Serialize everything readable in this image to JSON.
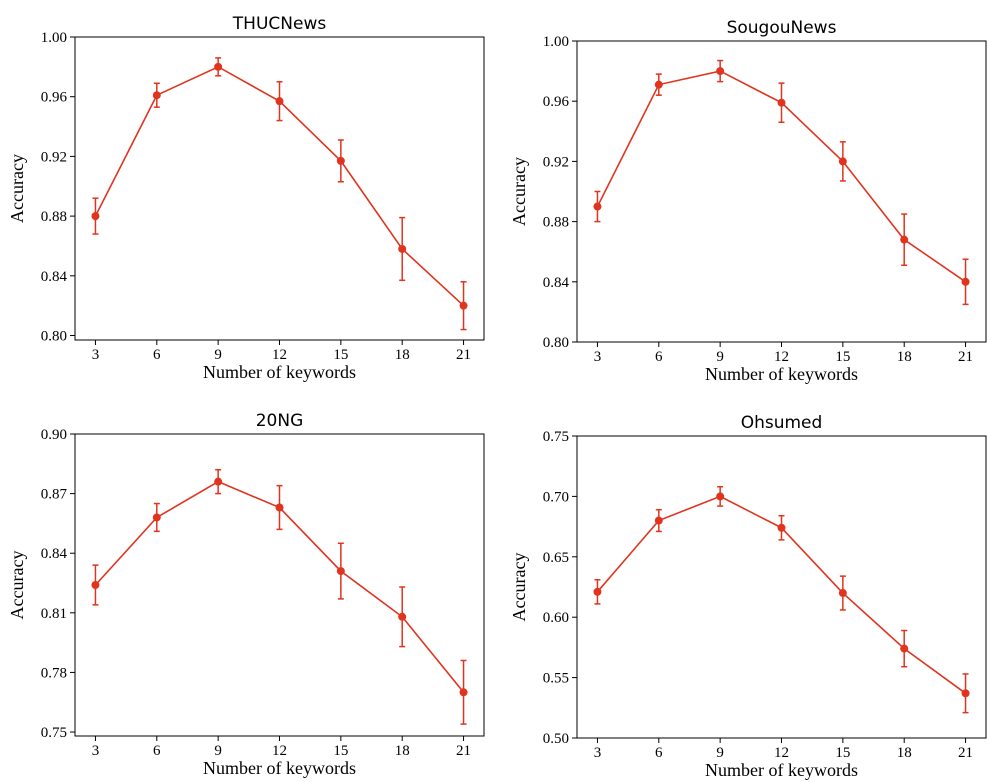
{
  "chart_data": [
    {
      "type": "line",
      "title": "THUCNews",
      "xlabel": "Number of keywords",
      "ylabel": "Accuracy",
      "x": [
        3,
        6,
        9,
        12,
        15,
        18,
        21
      ],
      "xticks": [
        "3",
        "6",
        "9",
        "12",
        "15",
        "18",
        "21"
      ],
      "yticks": [
        "0.80",
        "0.84",
        "0.88",
        "0.92",
        "0.96",
        "1.00"
      ],
      "ylim": [
        0.797,
        1.0
      ],
      "xlim": [
        2.0,
        22.0
      ],
      "grid": false,
      "series": [
        {
          "values": [
            0.88,
            0.961,
            0.98,
            0.957,
            0.917,
            0.858,
            0.82
          ],
          "error": [
            0.012,
            0.008,
            0.006,
            0.013,
            0.014,
            0.021,
            0.016
          ],
          "color": "#e0341f"
        }
      ]
    },
    {
      "type": "line",
      "title": "SougouNews",
      "xlabel": "Number of keywords",
      "ylabel": "Accuracy",
      "x": [
        3,
        6,
        9,
        12,
        15,
        18,
        21
      ],
      "xticks": [
        "3",
        "6",
        "9",
        "12",
        "15",
        "18",
        "21"
      ],
      "yticks": [
        "0.80",
        "0.84",
        "0.88",
        "0.92",
        "0.96",
        "1.00"
      ],
      "ylim": [
        0.8,
        1.0
      ],
      "xlim": [
        2.0,
        22.0
      ],
      "grid": false,
      "series": [
        {
          "values": [
            0.89,
            0.971,
            0.98,
            0.959,
            0.92,
            0.868,
            0.84
          ],
          "error": [
            0.01,
            0.007,
            0.007,
            0.013,
            0.013,
            0.017,
            0.015
          ],
          "color": "#e0341f"
        }
      ]
    },
    {
      "type": "line",
      "title": "20NG",
      "xlabel": "Number of keywords",
      "ylabel": "Accuracy",
      "x": [
        3,
        6,
        9,
        12,
        15,
        18,
        21
      ],
      "xticks": [
        "3",
        "6",
        "9",
        "12",
        "15",
        "18",
        "21"
      ],
      "yticks": [
        "0.75",
        "0.78",
        "0.81",
        "0.84",
        "0.87",
        "0.90"
      ],
      "ylim": [
        0.748,
        0.9
      ],
      "xlim": [
        2.0,
        22.0
      ],
      "grid": false,
      "series": [
        {
          "values": [
            0.824,
            0.858,
            0.876,
            0.863,
            0.831,
            0.808,
            0.77
          ],
          "error": [
            0.01,
            0.007,
            0.006,
            0.011,
            0.014,
            0.015,
            0.016
          ],
          "color": "#e0341f"
        }
      ]
    },
    {
      "type": "line",
      "title": "Ohsumed",
      "xlabel": "Number of keywords",
      "ylabel": "Accuracy",
      "x": [
        3,
        6,
        9,
        12,
        15,
        18,
        21
      ],
      "xticks": [
        "3",
        "6",
        "9",
        "12",
        "15",
        "18",
        "21"
      ],
      "yticks": [
        "0.50",
        "0.55",
        "0.60",
        "0.65",
        "0.70",
        "0.75"
      ],
      "ylim": [
        0.5,
        0.75
      ],
      "xlim": [
        2.0,
        22.0
      ],
      "grid": false,
      "series": [
        {
          "values": [
            0.621,
            0.68,
            0.7,
            0.674,
            0.62,
            0.574,
            0.537
          ],
          "error": [
            0.01,
            0.009,
            0.008,
            0.01,
            0.014,
            0.015,
            0.016
          ],
          "color": "#e0341f"
        }
      ]
    }
  ]
}
